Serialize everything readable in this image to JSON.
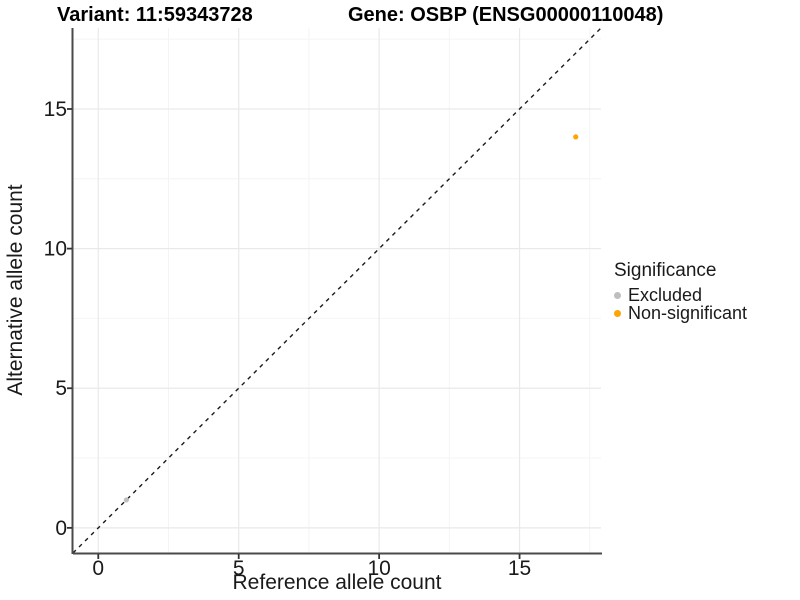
{
  "titles": {
    "left": "Variant: 11:59343728",
    "right": "Gene: OSBP (ENSG00000110048)"
  },
  "chart_data": {
    "type": "scatter",
    "xlabel": "Reference allele count",
    "ylabel": "Alternative allele count",
    "x_ticks": [
      0,
      5,
      10,
      15
    ],
    "y_ticks": [
      0,
      5,
      10,
      15
    ],
    "x_minor_ticks": [
      2.5,
      7.5,
      12.5,
      17.5
    ],
    "y_minor_ticks": [
      2.5,
      7.5,
      12.5,
      17.5
    ],
    "xlim": [
      -0.9,
      17.9
    ],
    "ylim": [
      -0.9,
      17.9
    ],
    "grid": "major and minor, light gray on white",
    "reference_line": {
      "type": "identity y=x",
      "style": "dashed",
      "color": "#1a1a1a"
    },
    "series": [
      {
        "name": "Excluded",
        "color": "#BEBEBE",
        "points": [
          {
            "x": 1,
            "y": 1
          }
        ]
      },
      {
        "name": "Non-significant",
        "color": "#FFA500",
        "points": [
          {
            "x": 17,
            "y": 14
          }
        ]
      }
    ],
    "legend": {
      "title": "Significance",
      "position": "right",
      "entries": [
        {
          "label": "Excluded",
          "color": "#BEBEBE"
        },
        {
          "label": "Non-significant",
          "color": "#FFA500"
        }
      ]
    }
  },
  "colors": {
    "background": "#ffffff",
    "axis_line": "#4a4a4a",
    "tick_mark": "#333333",
    "grid_major": "#e9e9e9",
    "grid_minor": "#f4f4f4",
    "text": "#1a1a1a"
  }
}
